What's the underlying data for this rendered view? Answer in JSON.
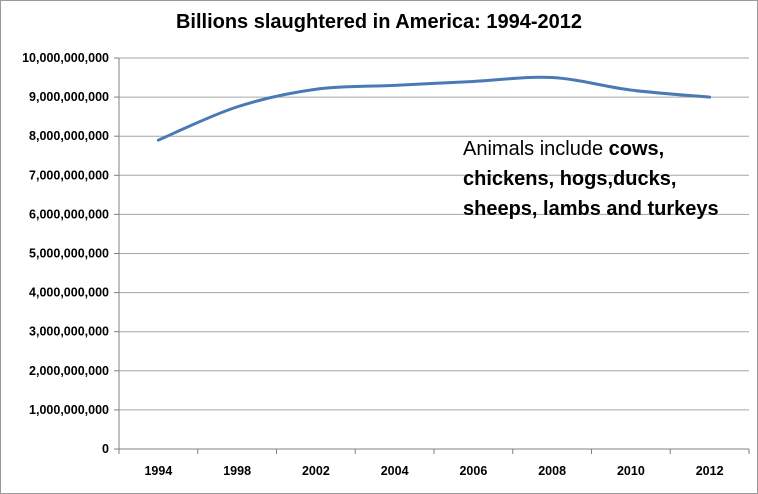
{
  "chart_data": {
    "type": "line",
    "title": "Billions slaughtered in America: 1994-2012",
    "xlabel": "",
    "ylabel": "",
    "ylim": [
      0,
      10000000000
    ],
    "grid": "horizontal",
    "legend": "none",
    "line_color": "#4a7ab5",
    "x_tick_labels": [
      "1994",
      "1998",
      "2002",
      "2004",
      "2006",
      "2008",
      "2010",
      "2012"
    ],
    "y_tick_labels": [
      "0",
      "1,000,000,000",
      "2,000,000,000",
      "3,000,000,000",
      "4,000,000,000",
      "5,000,000,000",
      "6,000,000,000",
      "7,000,000,000",
      "8,000,000,000",
      "9,000,000,000",
      "10,000,000,000"
    ],
    "series": [
      {
        "x": [
          "1994",
          "1998",
          "2002",
          "2004",
          "2006",
          "2008",
          "2010",
          "2012"
        ],
        "values": [
          7900000000,
          8750000000,
          9200000000,
          9300000000,
          9400000000,
          9500000000,
          9180000000,
          9000000000
        ]
      }
    ],
    "annotation": {
      "prefix": "Animals include ",
      "bold_text": "cows, chickens, hogs,ducks, sheeps, lambs and turkeys"
    }
  }
}
